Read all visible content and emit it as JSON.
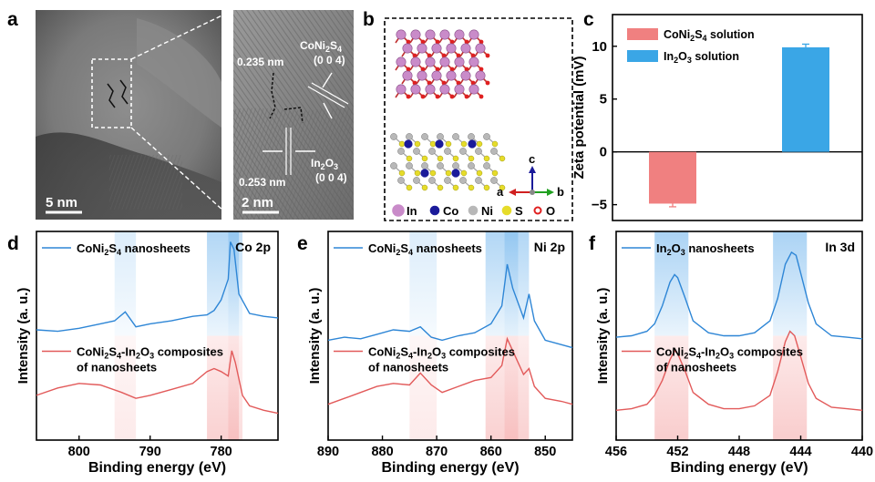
{
  "panels": {
    "a": {
      "label": "a",
      "scale_left": "5 nm",
      "scale_right": "2 nm",
      "d1": "0.235 nm",
      "d2": "0.253 nm",
      "phase1": "CoNi2S4",
      "plane1": "(0 0 4)",
      "phase2": "In2O3",
      "plane2": "(0 0 4)"
    },
    "b": {
      "label": "b",
      "axes": {
        "a": "a",
        "b": "b",
        "c": "c"
      },
      "legend": [
        {
          "name": "In",
          "color": "#c98bc9"
        },
        {
          "name": "Co",
          "color": "#1a1a9a"
        },
        {
          "name": "Ni",
          "color": "#b8b8b8"
        },
        {
          "name": "S",
          "color": "#e6dc2a"
        },
        {
          "name": "O",
          "color": "#e02020"
        }
      ]
    },
    "c": {
      "label": "c"
    },
    "d": {
      "label": "d"
    },
    "e": {
      "label": "e"
    },
    "f": {
      "label": "f"
    }
  },
  "chart_data": [
    {
      "type": "bar",
      "panel": "c",
      "ylabel": "Zeta potential (mV)",
      "ylim": [
        -6.5,
        13
      ],
      "yticks": [
        -5,
        0,
        5,
        10
      ],
      "categories": [
        "CoNi2S4 solution",
        "In2O3 solution"
      ],
      "values": [
        -4.9,
        9.9
      ],
      "errors": [
        0.3,
        0.3
      ],
      "colors": [
        "#f08080",
        "#3aa6e6"
      ],
      "legend": [
        {
          "base": "CoNi",
          "s1": "2",
          "mid": "S",
          "s2": "4",
          "tail": " solution"
        },
        {
          "base": "In",
          "s1": "2",
          "mid": "O",
          "s2": "3",
          "tail": " solution"
        }
      ]
    },
    {
      "type": "line",
      "panel": "d",
      "xlabel": "Binding energy (eV)",
      "ylabel": "Intensity (a. u.)",
      "xlim": [
        806,
        772
      ],
      "xticks": [
        800,
        790,
        780
      ],
      "annotation": "Co 2p",
      "series": [
        {
          "name": "CoNi2S4 nanosheets",
          "color": "#2e86d6",
          "x": [
            806,
            803,
            800,
            797,
            795,
            793.5,
            792,
            790,
            787,
            784,
            782,
            781,
            780,
            779,
            778.7,
            778.2,
            777.5,
            776,
            774,
            772
          ],
          "y": [
            0.34,
            0.33,
            0.35,
            0.38,
            0.4,
            0.46,
            0.36,
            0.38,
            0.4,
            0.43,
            0.44,
            0.47,
            0.54,
            0.68,
            0.93,
            0.88,
            0.58,
            0.45,
            0.43,
            0.42
          ]
        },
        {
          "name": "CoNi2S4-In2O3 composites of nanosheets",
          "color": "#e25a5a",
          "x": [
            806,
            803,
            800,
            797,
            794,
            792,
            790,
            787,
            784,
            782,
            781,
            780,
            779,
            778.5,
            778,
            777,
            776,
            774,
            772
          ],
          "y": [
            -0.1,
            -0.05,
            -0.02,
            -0.03,
            -0.08,
            -0.12,
            -0.1,
            -0.06,
            -0.02,
            0.06,
            0.08,
            0.06,
            0.03,
            0.2,
            0.12,
            -0.1,
            -0.17,
            -0.2,
            -0.22
          ]
        }
      ]
    },
    {
      "type": "line",
      "panel": "e",
      "xlabel": "Binding energy (eV)",
      "ylabel": "Intensity (a. u.)",
      "xlim": [
        890,
        845
      ],
      "xticks": [
        890,
        880,
        870,
        860,
        850
      ],
      "annotation": "Ni 2p",
      "series": [
        {
          "name": "CoNi2S4 nanosheets",
          "color": "#2e86d6",
          "x": [
            890,
            887,
            884,
            881,
            878,
            875,
            873,
            871,
            869,
            866,
            863,
            860,
            858,
            857,
            856,
            854,
            853,
            852,
            850,
            847,
            845
          ],
          "y": [
            0.27,
            0.29,
            0.28,
            0.31,
            0.34,
            0.33,
            0.36,
            0.29,
            0.27,
            0.3,
            0.32,
            0.38,
            0.5,
            0.78,
            0.62,
            0.42,
            0.58,
            0.4,
            0.27,
            0.24,
            0.22
          ]
        },
        {
          "name": "CoNi2S4-In2O3 composites of nanosheets",
          "color": "#e25a5a",
          "x": [
            890,
            887,
            884,
            881,
            878,
            875,
            873,
            871,
            869,
            866,
            863,
            860,
            858,
            857,
            856,
            854,
            853,
            852,
            850,
            847,
            845
          ],
          "y": [
            -0.16,
            -0.12,
            -0.08,
            -0.04,
            -0.02,
            -0.03,
            0.05,
            -0.03,
            -0.08,
            -0.04,
            0.0,
            0.02,
            0.1,
            0.28,
            0.2,
            0.04,
            0.08,
            -0.04,
            -0.12,
            -0.14,
            -0.16
          ]
        }
      ]
    },
    {
      "type": "line",
      "panel": "f",
      "xlabel": "Binding energy (eV)",
      "ylabel": "Intensity (a. u.)",
      "xlim": [
        456,
        440
      ],
      "xticks": [
        456,
        452,
        448,
        444,
        440
      ],
      "annotation": "In 3d",
      "series": [
        {
          "name": "In2O3 nanosheets",
          "color": "#2e86d6",
          "x": [
            456,
            455,
            454,
            453.5,
            453,
            452.5,
            452.2,
            452,
            451.5,
            451,
            450,
            449,
            448,
            447,
            446,
            445.5,
            445,
            444.6,
            444.3,
            444,
            443.5,
            443,
            442,
            441,
            440
          ],
          "y": [
            0.29,
            0.3,
            0.33,
            0.38,
            0.5,
            0.66,
            0.71,
            0.69,
            0.55,
            0.4,
            0.32,
            0.3,
            0.3,
            0.32,
            0.4,
            0.55,
            0.78,
            0.86,
            0.84,
            0.72,
            0.52,
            0.38,
            0.3,
            0.29,
            0.28
          ]
        },
        {
          "name": "CoNi2S4-In2O3 composites of nanosheets",
          "color": "#e25a5a",
          "x": [
            456,
            455,
            454,
            453.5,
            453,
            452.5,
            452.2,
            452,
            451.5,
            451,
            450,
            449,
            448,
            447,
            446,
            445.5,
            445,
            444.7,
            444.4,
            444,
            443.5,
            443,
            442,
            441,
            440
          ],
          "y": [
            -0.2,
            -0.19,
            -0.16,
            -0.1,
            0.0,
            0.14,
            0.2,
            0.18,
            0.06,
            -0.08,
            -0.16,
            -0.19,
            -0.19,
            -0.17,
            -0.1,
            0.06,
            0.26,
            0.33,
            0.3,
            0.16,
            -0.02,
            -0.12,
            -0.18,
            -0.19,
            -0.2
          ]
        }
      ]
    }
  ],
  "spec_labels": {
    "d": {
      "top": {
        "b": "CoNi",
        "s1": "2",
        "m": "S",
        "s2": "4",
        "t": " nanosheets"
      },
      "bot1": {
        "b": "CoNi",
        "s1": "2",
        "m": "S",
        "s2": "4",
        "t": "-In",
        "s3": "2",
        "m2": "O",
        "s4": "3",
        "t2": " composites"
      },
      "bot2": "of nanosheets"
    },
    "e": {
      "top": {
        "b": "CoNi",
        "s1": "2",
        "m": "S",
        "s2": "4",
        "t": " nanosheets"
      },
      "bot1": {
        "b": "CoNi",
        "s1": "2",
        "m": "S",
        "s2": "4",
        "t": "-In",
        "s3": "2",
        "m2": "O",
        "s4": "3",
        "t2": " composites"
      },
      "bot2": "of nanosheets"
    },
    "f": {
      "top": {
        "b": "In",
        "s1": "2",
        "m": "O",
        "s2": "3",
        "t": " nanosheets"
      },
      "bot1": {
        "b": "CoNi",
        "s1": "2",
        "m": "S",
        "s2": "4",
        "t": "-In",
        "s3": "2",
        "m2": "O",
        "s4": "3",
        "t2": " composites"
      },
      "bot2": "of nanosheets"
    }
  }
}
